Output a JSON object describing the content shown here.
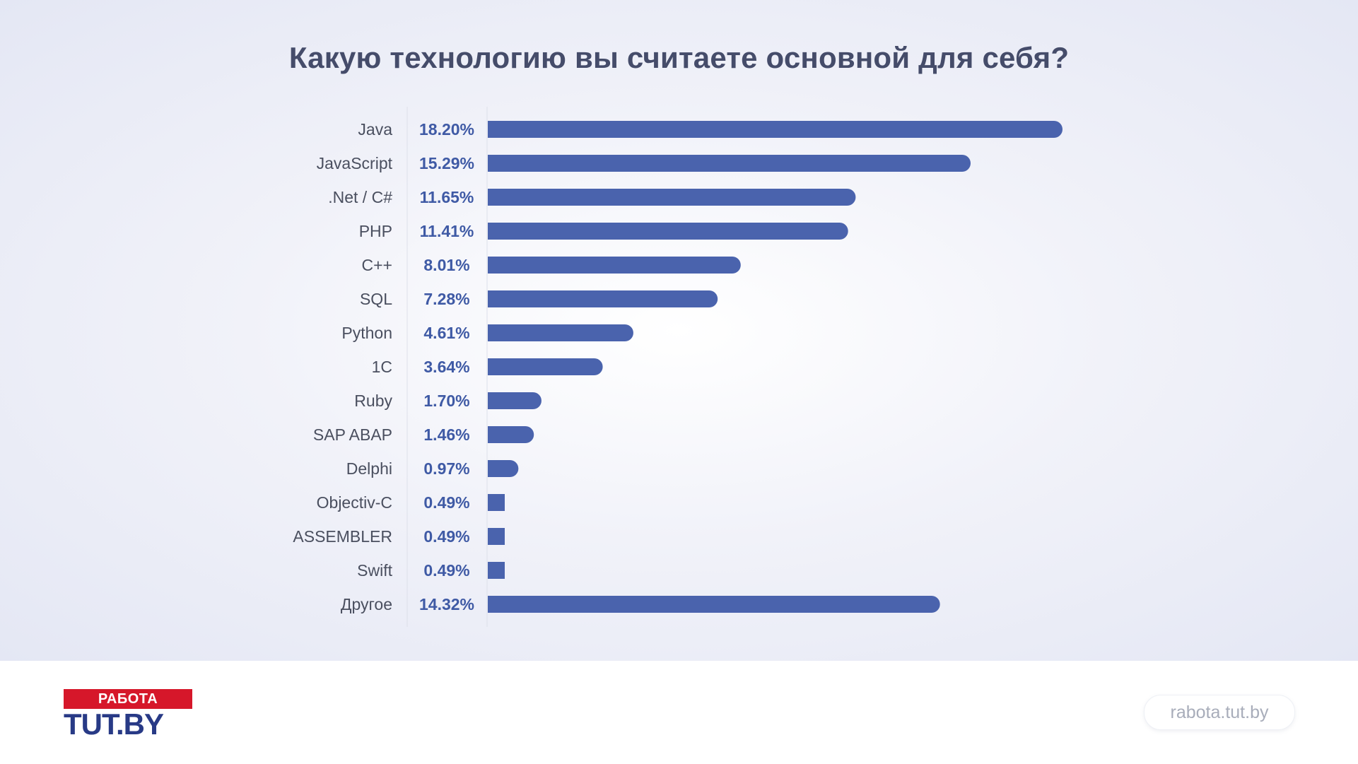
{
  "title": "Какую технологию вы считаете основной для себя?",
  "chart_data": {
    "type": "bar",
    "orientation": "horizontal",
    "title": "Какую технологию вы считаете основной для себя?",
    "categories": [
      "Java",
      "JavaScript",
      ".Net / C#",
      "PHP",
      "C++",
      "SQL",
      "Python",
      "1C",
      "Ruby",
      "SAP ABAP",
      "Delphi",
      "Objectiv-C",
      "ASSEMBLER",
      "Swift",
      "Другое"
    ],
    "values": [
      18.2,
      15.29,
      11.65,
      11.41,
      8.01,
      7.28,
      4.61,
      3.64,
      1.7,
      1.46,
      0.97,
      0.49,
      0.49,
      0.49,
      14.32
    ],
    "value_labels": [
      "18.20%",
      "15.29%",
      "11.65%",
      "11.41%",
      "8.01%",
      "7.28%",
      "4.61%",
      "3.64%",
      "1.70%",
      "1.46%",
      "0.97%",
      "0.49%",
      "0.49%",
      "0.49%",
      "14.32%"
    ],
    "unit": "%",
    "bar_color": "#4a63ad",
    "label_color": "#3f5aa5",
    "grid": false,
    "legend": "none"
  },
  "footer": {
    "logo_top": "РАБОТА",
    "logo_main": "TUT.BY",
    "site": "rabota.tut.by",
    "logo_top_color": "#d6172a",
    "logo_main_color": "#283a86"
  }
}
